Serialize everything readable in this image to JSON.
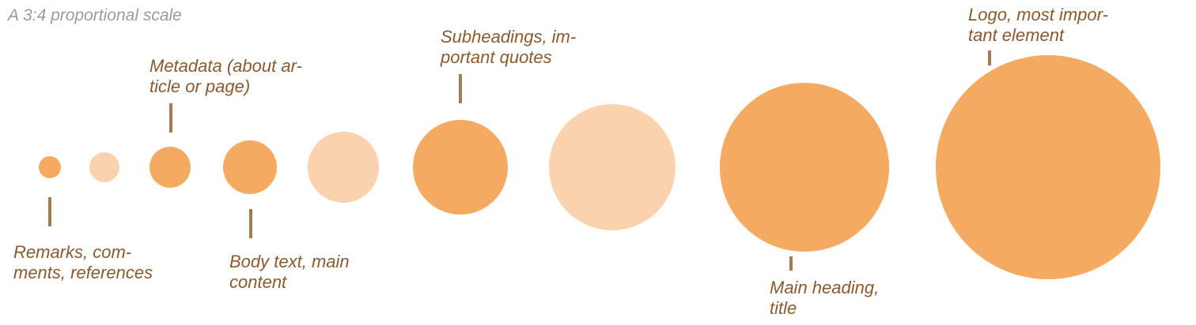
{
  "title": "A 3:4 proportional scale",
  "colors": {
    "title_text": "#9a9a9a",
    "label_text": "#8a5a2e",
    "leader_line": "#a07c55",
    "circle_strong": "#f5aa62",
    "circle_light": "#fad3ae"
  },
  "circles": [
    {
      "id": "step-1",
      "tone": "strong"
    },
    {
      "id": "step-2",
      "tone": "light"
    },
    {
      "id": "step-3",
      "tone": "strong"
    },
    {
      "id": "step-4",
      "tone": "strong"
    },
    {
      "id": "step-5",
      "tone": "light"
    },
    {
      "id": "step-6",
      "tone": "strong"
    },
    {
      "id": "step-7",
      "tone": "light"
    },
    {
      "id": "step-8",
      "tone": "strong"
    },
    {
      "id": "step-9",
      "tone": "strong"
    }
  ],
  "annotations": [
    {
      "id": "remarks",
      "circle": "step-1",
      "lines": [
        "Remarks, com-",
        "ments, references"
      ]
    },
    {
      "id": "metadata",
      "circle": "step-3",
      "lines": [
        "Metadata (about ar-",
        "ticle or page)"
      ]
    },
    {
      "id": "body-text",
      "circle": "step-4",
      "lines": [
        "Body text, main",
        "content"
      ]
    },
    {
      "id": "subheadings",
      "circle": "step-6",
      "lines": [
        "Subheadings, im-",
        "portant quotes"
      ]
    },
    {
      "id": "main-heading",
      "circle": "step-8",
      "lines": [
        "Main heading,",
        "title"
      ]
    },
    {
      "id": "logo",
      "circle": "step-9",
      "lines": [
        "Logo, most impor-",
        "tant element"
      ]
    }
  ]
}
